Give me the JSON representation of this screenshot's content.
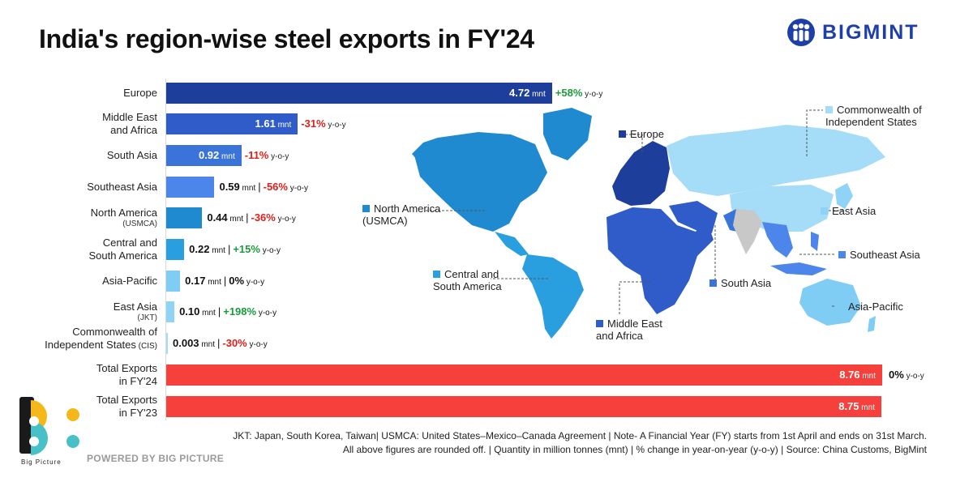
{
  "title": "India's region-wise steel exports in FY'24",
  "brand": {
    "name": "BIGMINT",
    "color": "#1f3fa8",
    "icon": "people-icon"
  },
  "chart_data": {
    "type": "bar",
    "orientation": "horizontal",
    "unit": "mnt",
    "change_suffix": "y-o-y",
    "categories": [
      {
        "label": "Europe",
        "sub": "",
        "value": 4.72,
        "value_text": "4.72",
        "change": "+58%",
        "color": "#1e3e9b"
      },
      {
        "label": "Middle East\nand Africa",
        "sub": "",
        "value": 1.61,
        "value_text": "1.61",
        "change": "-31%",
        "color": "#2f5cc8"
      },
      {
        "label": "South Asia",
        "sub": "",
        "value": 0.92,
        "value_text": "0.92",
        "change": "-11%",
        "color": "#3b74d8"
      },
      {
        "label": "Southeast Asia",
        "sub": "",
        "value": 0.59,
        "value_text": "0.59",
        "change": "-56%",
        "color": "#4d86ea"
      },
      {
        "label": "North America",
        "sub": "(USMCA)",
        "value": 0.44,
        "value_text": "0.44",
        "change": "-36%",
        "color": "#1f8ad0"
      },
      {
        "label": "Central and\nSouth America",
        "sub": "",
        "value": 0.22,
        "value_text": "0.22",
        "change": "+15%",
        "color": "#2a9fe0"
      },
      {
        "label": "Asia-Pacific",
        "sub": "",
        "value": 0.17,
        "value_text": "0.17",
        "change": "0%",
        "color": "#7fcdf5"
      },
      {
        "label": "East Asia",
        "sub": "(JKT)",
        "value": 0.1,
        "value_text": "0.10",
        "change": "+198%",
        "color": "#8fd3f7"
      },
      {
        "label": "Commonwealth of\nIndependent States",
        "sub": "(CIS)",
        "value": 0.003,
        "value_text": "0.003",
        "change": "-30%",
        "color": "#a5dcf8"
      }
    ],
    "totals": [
      {
        "label": "Total Exports\nin FY'24",
        "value": 8.76,
        "value_text": "8.76",
        "change": "0%",
        "color": "#f5403c"
      },
      {
        "label": "Total Exports\nin FY'23",
        "value": 8.75,
        "value_text": "8.75",
        "change": "",
        "color": "#f5403c"
      }
    ],
    "colors": {
      "positive": "#1a9b3c",
      "negative": "#e0201b",
      "neutral": "#111111"
    }
  },
  "map": {
    "labels": [
      {
        "id": "europe",
        "text": "Europe",
        "color": "#1e3e9b"
      },
      {
        "id": "cis",
        "text": "Commonwealth of\nIndependent States",
        "color": "#a5dcf8"
      },
      {
        "id": "north-america",
        "text": "North America\n(USMCA)",
        "color": "#1f8ad0"
      },
      {
        "id": "east-asia",
        "text": "East Asia",
        "color": "#8fd3f7"
      },
      {
        "id": "southeast-asia",
        "text": "Southeast Asia",
        "color": "#4d86ea"
      },
      {
        "id": "central-south-america",
        "text": "Central and\nSouth America",
        "color": "#2a9fe0"
      },
      {
        "id": "south-asia",
        "text": "South Asia",
        "color": "#3b74d8"
      },
      {
        "id": "asia-pacific",
        "text": "Asia-Pacific",
        "color": "#7fcdf5"
      },
      {
        "id": "middle-east-africa",
        "text": "Middle East\nand Africa",
        "color": "#2f5cc8"
      }
    ]
  },
  "notes": [
    "JKT: Japan, South Korea, Taiwan| USMCA: United States–Mexico–Canada Agreement | Note- A Financial Year (FY) starts from 1st April and ends on 31st March.",
    "All above figures are rounded off. | Quantity in million tonnes (mnt) | % change in year-on-year (y-o-y) | Source: China Customs, BigMint"
  ],
  "footer": {
    "logo_caption": "Big Picture",
    "powered_by": "POWERED BY BIG PICTURE"
  }
}
